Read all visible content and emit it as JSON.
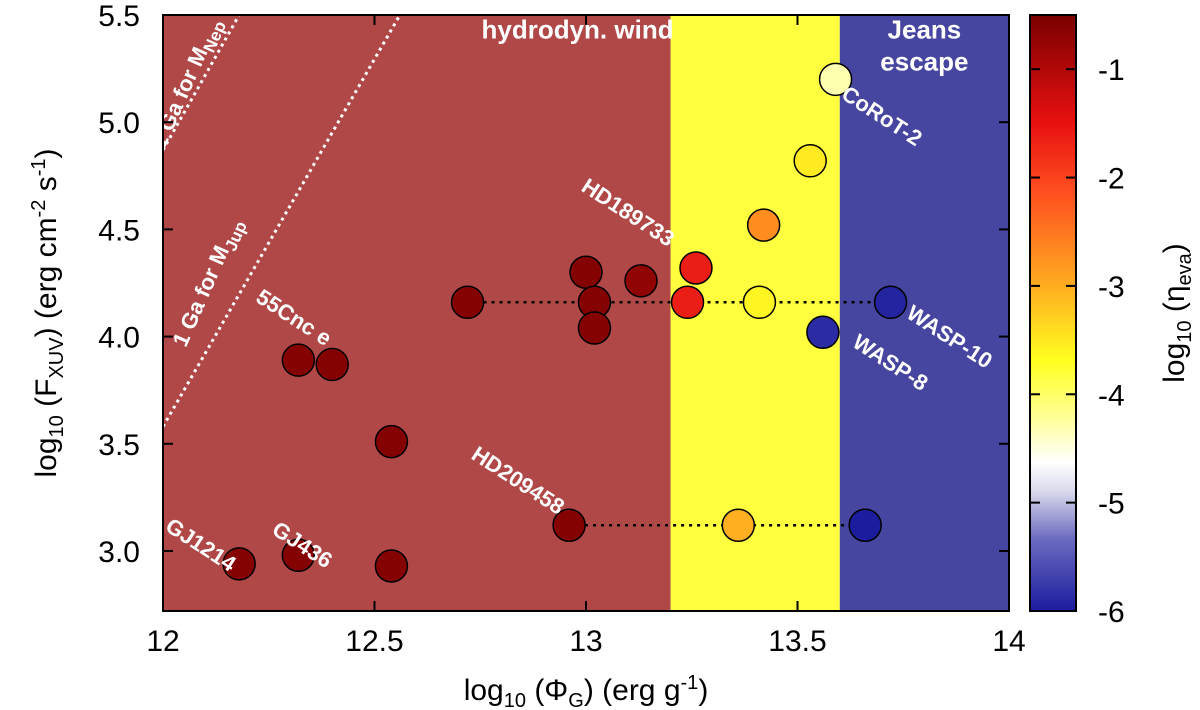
{
  "chart_data": {
    "type": "scatter",
    "xlabel": {
      "pre": "log",
      "sub": "10",
      "mid": " (Φ",
      "sub2": "G",
      "post": ") (erg g",
      "sup": "-1",
      "end": ")"
    },
    "ylabel": {
      "pre": "log",
      "sub": "10",
      "mid": " (F",
      "sub2": "XUV",
      "post": ") (erg cm",
      "sup": "-2",
      "post2": " s",
      "sup2": "-1",
      "end": ")"
    },
    "colorbar_label": {
      "pre": "log",
      "sub": "10",
      "mid": " (η",
      "sub2": "eva",
      "end": ")"
    },
    "xlim": [
      12,
      14
    ],
    "ylim": [
      2.72,
      5.5
    ],
    "xticks": [
      12,
      12.5,
      13,
      13.5,
      14
    ],
    "xtick_labels": [
      "12",
      "12.5",
      "13",
      "13.5",
      "14"
    ],
    "yticks": [
      3.0,
      3.5,
      4.0,
      4.5,
      5.0,
      5.5
    ],
    "ytick_labels": [
      "3.0",
      "3.5",
      "4.0",
      "4.5",
      "5.0",
      "5.5"
    ],
    "colorbar_ticks": [
      -1,
      -2,
      -3,
      -4,
      -5,
      -6
    ],
    "colorbar_tick_labels": [
      "-1",
      "-2",
      "-3",
      "-4",
      "-5",
      "-6"
    ],
    "colorbar_range": [
      -6,
      -0.5
    ],
    "regions": [
      {
        "label": "hydrodyn. wind",
        "x0": 12,
        "x1": 13.2,
        "color": "#b04848"
      },
      {
        "label": "",
        "x0": 13.2,
        "x1": 13.6,
        "color": "#ffff40"
      },
      {
        "label": "Jeans escape",
        "x0": 13.6,
        "x1": 14,
        "color": "#4646a0"
      }
    ],
    "region_label_lines": [
      {
        "text": "hydrodyn. wind",
        "x": 12.98,
        "y": 5.39
      },
      {
        "text": "Jeans",
        "x": 13.8,
        "y": 5.39
      },
      {
        "text": "escape",
        "x": 13.8,
        "y": 5.24
      }
    ],
    "mass_lines": [
      {
        "label": "1 Ga for M",
        "sub": "Nep",
        "points": [
          [
            12,
            4.87
          ],
          [
            12.18,
            5.5
          ]
        ],
        "label_x": 12.07,
        "label_y": 5.17,
        "angle": -66
      },
      {
        "label": "1 Ga for M",
        "sub": "Jup",
        "points": [
          [
            12,
            3.58
          ],
          [
            12.56,
            5.5
          ]
        ],
        "label_x": 12.12,
        "label_y": 4.24,
        "angle": -66
      }
    ],
    "connectors": [
      {
        "y": 4.16,
        "x0": 12.72,
        "x1": 13.72
      },
      {
        "y": 3.12,
        "x0": 12.96,
        "x1": 13.66
      }
    ],
    "points": [
      {
        "x": 12.18,
        "y": 2.94,
        "c": -0.6
      },
      {
        "x": 12.32,
        "y": 2.98,
        "c": -0.6
      },
      {
        "x": 12.54,
        "y": 2.93,
        "c": -0.6
      },
      {
        "x": 12.32,
        "y": 3.89,
        "c": -0.6
      },
      {
        "x": 12.4,
        "y": 3.87,
        "c": -0.6
      },
      {
        "x": 12.54,
        "y": 3.51,
        "c": -0.6
      },
      {
        "x": 12.72,
        "y": 4.16,
        "c": -0.6
      },
      {
        "x": 12.96,
        "y": 3.12,
        "c": -0.6
      },
      {
        "x": 13.0,
        "y": 4.3,
        "c": -0.6
      },
      {
        "x": 13.02,
        "y": 4.16,
        "c": -0.6
      },
      {
        "x": 13.02,
        "y": 4.04,
        "c": -0.6
      },
      {
        "x": 13.13,
        "y": 4.26,
        "c": -0.7
      },
      {
        "x": 13.26,
        "y": 4.32,
        "c": -1.6
      },
      {
        "x": 13.24,
        "y": 4.16,
        "c": -1.6
      },
      {
        "x": 13.41,
        "y": 4.16,
        "c": -3.9
      },
      {
        "x": 13.42,
        "y": 4.52,
        "c": -2.8
      },
      {
        "x": 13.36,
        "y": 3.12,
        "c": -3.2
      },
      {
        "x": 13.53,
        "y": 4.82,
        "c": -3.8
      },
      {
        "x": 13.59,
        "y": 5.2,
        "c": -4.7
      },
      {
        "x": 13.56,
        "y": 4.02,
        "c": -5.9
      },
      {
        "x": 13.72,
        "y": 4.16,
        "c": -5.95
      },
      {
        "x": 13.66,
        "y": 3.12,
        "c": -6.0
      }
    ],
    "point_labels": [
      {
        "text": "GJ1214",
        "x": 12.08,
        "y": 3.0,
        "angle": 33
      },
      {
        "text": "GJ436",
        "x": 12.32,
        "y": 3.0,
        "angle": 33
      },
      {
        "text": "55Cnc e",
        "x": 12.3,
        "y": 4.06,
        "angle": 33
      },
      {
        "text": "HD209458",
        "x": 12.83,
        "y": 3.3,
        "angle": 33
      },
      {
        "text": "HD189733",
        "x": 13.09,
        "y": 4.55,
        "angle": 33
      },
      {
        "text": "CoRoT-2",
        "x": 13.69,
        "y": 5.0,
        "angle": 33
      },
      {
        "text": "WASP-10",
        "x": 13.85,
        "y": 3.97,
        "angle": 33
      },
      {
        "text": "WASP-8",
        "x": 13.71,
        "y": 3.85,
        "angle": 33
      }
    ]
  }
}
